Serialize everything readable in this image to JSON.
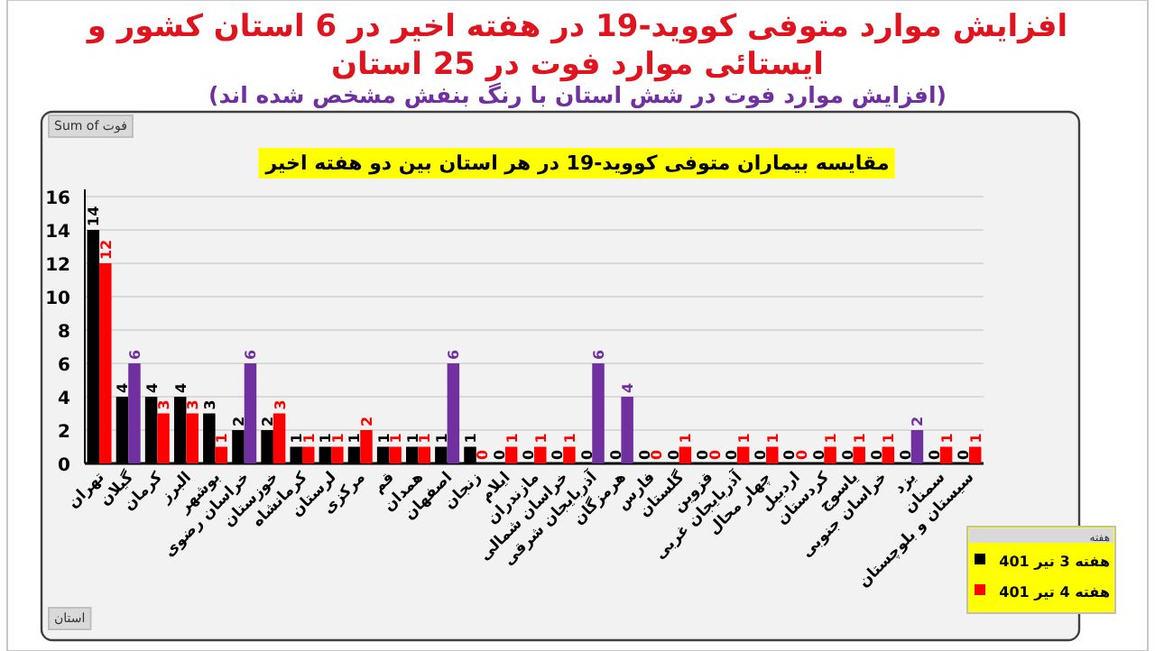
{
  "chart_data": {
    "type": "bar",
    "title": "افزایش موارد متوفی کووید-19 در هفته اخیر در 6 استان کشور و ایستائی موارد فوت در 25 استان",
    "subtitle": "(افزایش موارد فوت در شش استان با رنگ بنفش مشخص شده اند)",
    "annotations": [
      "مقایسه بیماران متوفی کووید-19 در هر استان بین دو هفته اخیر",
      "Sum of فوت",
      "استان"
    ],
    "legend_title": "هفته",
    "categories": [
      "تهران",
      "گیلان",
      "کرمان",
      "البرز",
      "بوشهر",
      "خراسان رضوی",
      "خوزستان",
      "کرمانشاه",
      "لرستان",
      "مرکزی",
      "قم",
      "همدان",
      "اصفهان",
      "زنجان",
      "ایلام",
      "مازندران",
      "خراسان شمالی",
      "آذربایجان شرقی",
      "هرمزگان",
      "فارس",
      "گلستان",
      "قزوین",
      "آذربایجان غربی",
      "چهار محال",
      "اردبیل",
      "کردستان",
      "یاسوج",
      "خراسان جنوبی",
      "یزد",
      "سمنان",
      "سیستان و بلوچستان"
    ],
    "series": [
      {
        "name": "هفته 3 تیر 401",
        "color": "#000000",
        "values": [
          14,
          4,
          4,
          4,
          3,
          2,
          2,
          1,
          1,
          1,
          1,
          1,
          1,
          1,
          0,
          0,
          0,
          0,
          0,
          0,
          0,
          0,
          0,
          0,
          0,
          0,
          0,
          0,
          0,
          0,
          0
        ]
      },
      {
        "name": "هفته 4 تیر 401",
        "color": "#ff0000",
        "values": [
          12,
          6,
          3,
          3,
          1,
          6,
          3,
          1,
          1,
          2,
          1,
          1,
          6,
          0,
          1,
          1,
          1,
          6,
          4,
          0,
          1,
          0,
          1,
          1,
          0,
          1,
          1,
          1,
          2,
          1,
          1
        ],
        "colors": [
          "#ff0000",
          "#7030a0",
          "#ff0000",
          "#ff0000",
          "#ff0000",
          "#7030a0",
          "#ff0000",
          "#ff0000",
          "#ff0000",
          "#ff0000",
          "#ff0000",
          "#ff0000",
          "#7030a0",
          "#ff0000",
          "#ff0000",
          "#ff0000",
          "#ff0000",
          "#7030a0",
          "#7030a0",
          "#ff0000",
          "#ff0000",
          "#ff0000",
          "#ff0000",
          "#ff0000",
          "#ff0000",
          "#ff0000",
          "#ff0000",
          "#ff0000",
          "#7030a0",
          "#ff0000",
          "#ff0000"
        ]
      }
    ],
    "ylim": [
      0,
      16
    ],
    "yticks": [
      0,
      2,
      4,
      6,
      8,
      10,
      12,
      14,
      16
    ],
    "grid": "y",
    "legend": "bottom right",
    "data_labels": true
  }
}
